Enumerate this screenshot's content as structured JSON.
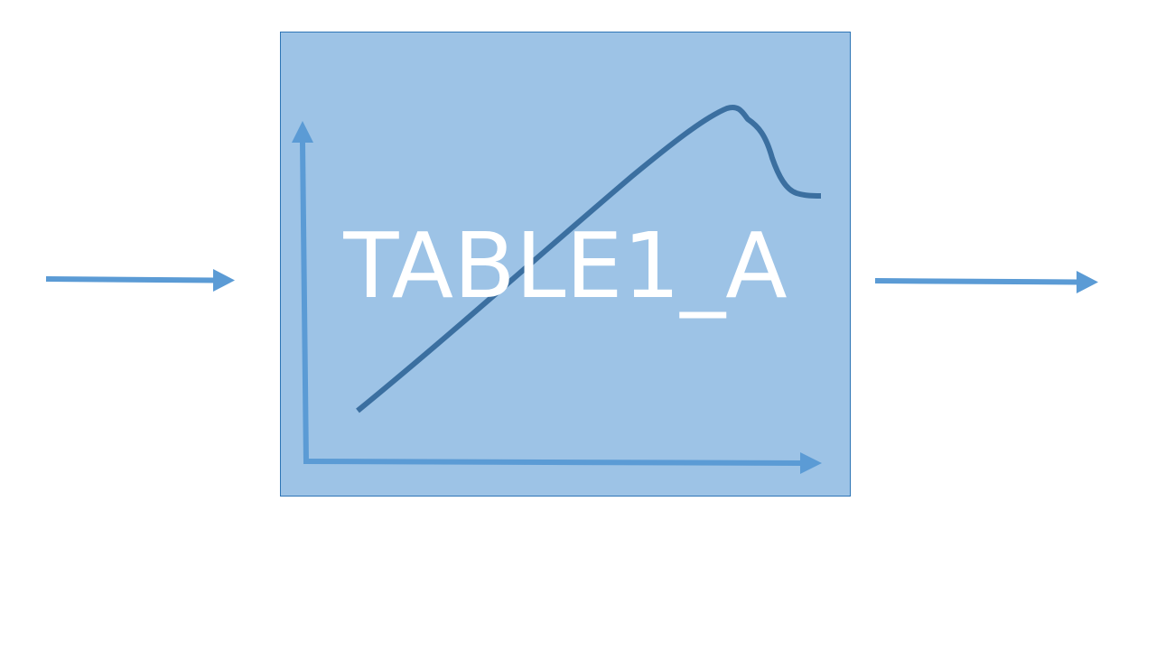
{
  "block": {
    "label": "TABLE1_A",
    "fill_color": "#9dc3e6",
    "border_color": "#2e75b6",
    "label_color": "#ffffff"
  },
  "arrows": {
    "color": "#5b9bd5"
  },
  "curve": {
    "color": "#3b6fa0"
  }
}
